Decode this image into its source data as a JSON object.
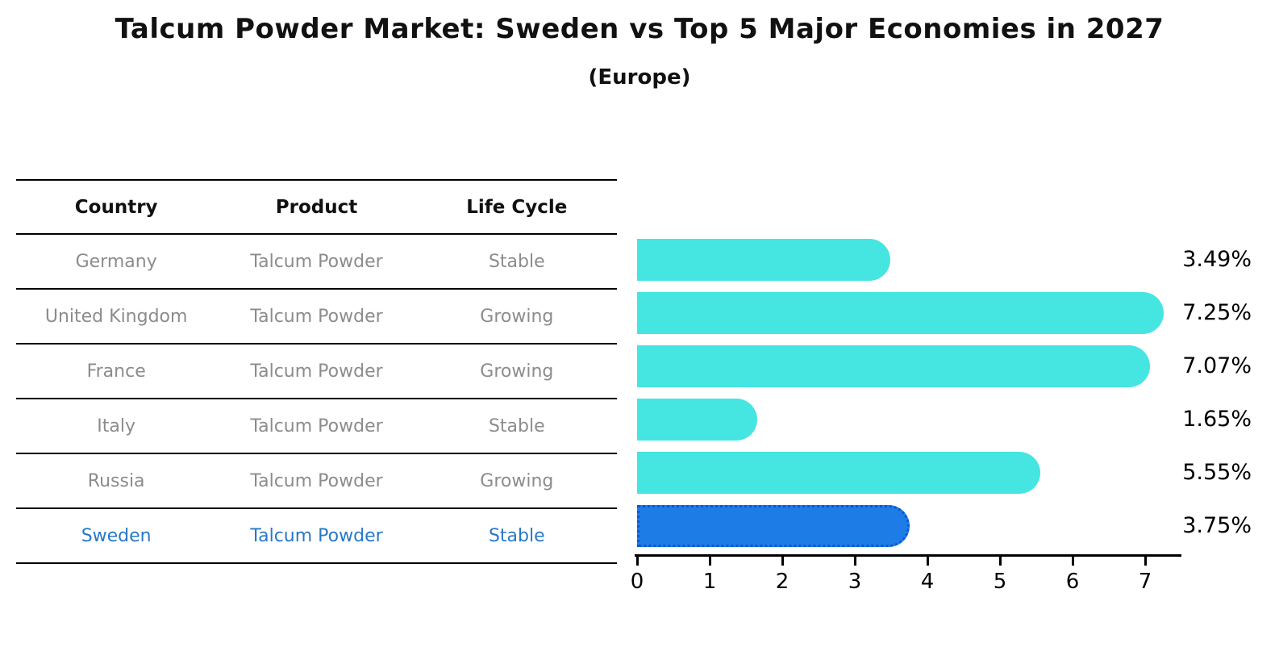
{
  "title": "Talcum Powder Market: Sweden vs Top 5 Major Economies in 2027",
  "subtitle": "(Europe)",
  "table": {
    "headers": [
      "Country",
      "Product",
      "Life Cycle"
    ],
    "rows": [
      {
        "country": "Germany",
        "product": "Talcum Powder",
        "life_cycle": "Stable",
        "highlight": false
      },
      {
        "country": "United Kingdom",
        "product": "Talcum Powder",
        "life_cycle": "Growing",
        "highlight": false
      },
      {
        "country": "France",
        "product": "Talcum Powder",
        "life_cycle": "Growing",
        "highlight": false
      },
      {
        "country": "Italy",
        "product": "Talcum Powder",
        "life_cycle": "Stable",
        "highlight": false
      },
      {
        "country": "Russia",
        "product": "Talcum Powder",
        "life_cycle": "Growing",
        "highlight": false
      },
      {
        "country": "Sweden",
        "product": "Talcum Powder",
        "life_cycle": "Stable",
        "highlight": true
      }
    ]
  },
  "chart_data": {
    "type": "bar",
    "orientation": "horizontal",
    "categories": [
      "Germany",
      "United Kingdom",
      "France",
      "Italy",
      "Russia",
      "Sweden"
    ],
    "values": [
      3.49,
      7.25,
      7.07,
      1.65,
      5.55,
      3.75
    ],
    "labels": [
      "3.49%",
      "7.25%",
      "7.07%",
      "1.65%",
      "5.55%",
      "3.75%"
    ],
    "xticks": [
      "0",
      "1",
      "2",
      "3",
      "4",
      "5",
      "6",
      "7"
    ],
    "xlim": [
      0,
      7.5
    ],
    "grid": false,
    "legend": "none",
    "highlight_index": 5,
    "bar_color": "#45e5e1",
    "highlight_color": "#1e7ce6",
    "highlight_border_color": "#0a58d6",
    "row_text_color": "#8c8c8c",
    "highlight_text_color": "#2878c8"
  }
}
